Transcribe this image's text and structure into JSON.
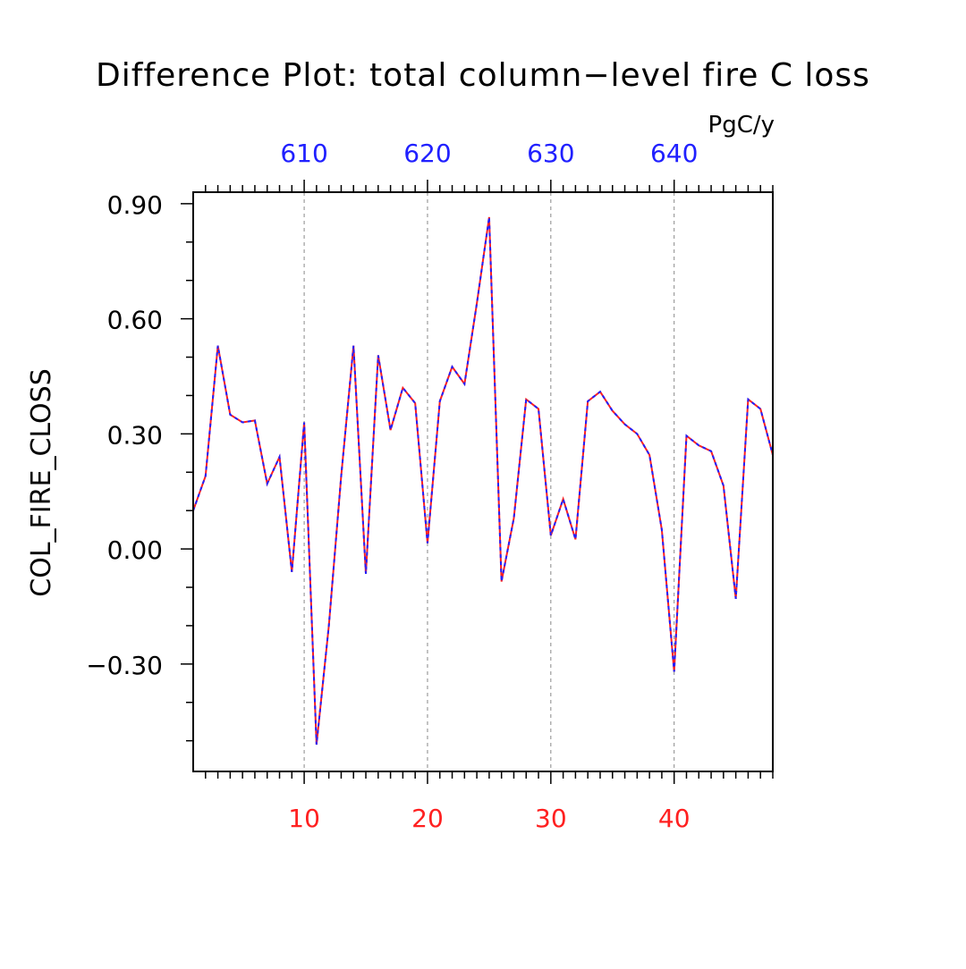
{
  "chart_data": {
    "type": "line",
    "title": "Difference Plot: total column−level fire C loss",
    "units": "PgC/y",
    "ylabel": "COL_FIRE_CLOSS",
    "xlabel": "",
    "xlim": [
      1,
      48
    ],
    "ylim": [
      -0.58,
      0.93
    ],
    "x_bottom": {
      "ticks": [
        10,
        20,
        30,
        40
      ],
      "tick_labels": [
        "10",
        "20",
        "30",
        "40"
      ],
      "color": "#ff2020"
    },
    "x_top": {
      "ticks": [
        610,
        620,
        630,
        640
      ],
      "tick_labels": [
        "610",
        "620",
        "630",
        "640"
      ],
      "offset": 600,
      "color": "#2020ff"
    },
    "y_ticks": [
      -0.3,
      0.0,
      0.3,
      0.6,
      0.9
    ],
    "y_tick_labels": [
      "−0.30",
      "0.00",
      "0.30",
      "0.60",
      "0.90"
    ],
    "grid": "vertical dashed at major x ticks",
    "x": [
      1,
      2,
      3,
      4,
      5,
      6,
      7,
      8,
      9,
      10,
      11,
      12,
      13,
      14,
      15,
      16,
      17,
      18,
      19,
      20,
      21,
      22,
      23,
      24,
      25,
      26,
      27,
      28,
      29,
      30,
      31,
      32,
      33,
      34,
      35,
      36,
      37,
      38,
      39,
      40,
      41,
      42,
      43,
      44,
      45,
      46,
      47,
      48
    ],
    "series": [
      {
        "color": "#ff2020",
        "style": "solid",
        "values": [
          0.1,
          0.19,
          0.53,
          0.35,
          0.33,
          0.335,
          0.17,
          0.24,
          -0.06,
          0.33,
          -0.51,
          -0.2,
          0.19,
          0.53,
          -0.065,
          0.505,
          0.31,
          0.42,
          0.38,
          0.015,
          0.385,
          0.475,
          0.43,
          0.64,
          0.865,
          -0.085,
          0.08,
          0.39,
          0.365,
          0.035,
          0.13,
          0.025,
          0.385,
          0.41,
          0.36,
          0.325,
          0.3,
          0.245,
          0.05,
          -0.32,
          0.295,
          0.27,
          0.255,
          0.165,
          -0.13,
          0.39,
          0.365,
          0.245
        ]
      },
      {
        "color": "#2020ff",
        "style": "dashed",
        "values": [
          0.1,
          0.19,
          0.53,
          0.35,
          0.33,
          0.335,
          0.17,
          0.24,
          -0.06,
          0.33,
          -0.51,
          -0.2,
          0.19,
          0.53,
          -0.065,
          0.505,
          0.31,
          0.42,
          0.38,
          0.015,
          0.385,
          0.475,
          0.43,
          0.64,
          0.865,
          -0.085,
          0.08,
          0.39,
          0.365,
          0.035,
          0.13,
          0.025,
          0.385,
          0.41,
          0.36,
          0.325,
          0.3,
          0.245,
          0.05,
          -0.32,
          0.295,
          0.27,
          0.255,
          0.165,
          -0.13,
          0.39,
          0.365,
          0.245
        ]
      }
    ]
  }
}
